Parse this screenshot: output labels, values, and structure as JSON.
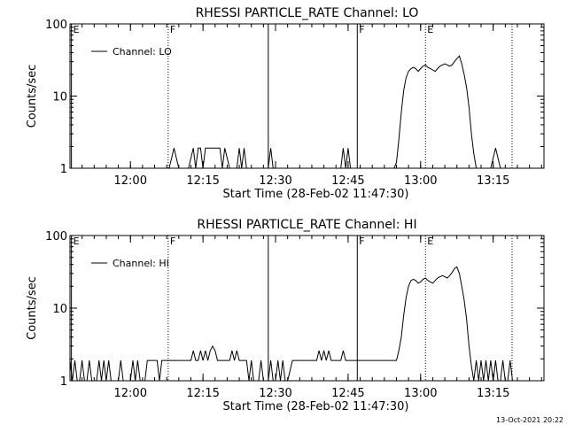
{
  "footer_timestamp": "13-Oct-2021 20:22",
  "chart_data": [
    {
      "type": "line",
      "title": "RHESSI PARTICLE_RATE Channel: LO",
      "xlabel": "Start Time (28-Feb-02 11:47:30)",
      "ylabel": "Counts/sec",
      "yscale": "log",
      "ylim": [
        1,
        100
      ],
      "xlim_minutes": [
        0,
        98
      ],
      "x_tick_labels": [
        "12:00",
        "12:15",
        "12:30",
        "12:45",
        "13:00",
        "13:15"
      ],
      "x_tick_minutes": [
        12.5,
        27.5,
        42.5,
        57.5,
        72.5,
        87.5
      ],
      "y_tick_labels": [
        "1",
        "10",
        "100"
      ],
      "y_ticks": [
        1,
        10,
        100
      ],
      "legend": "Channel: LO",
      "legend_position": "top-left",
      "markers": [
        {
          "label": "E",
          "x": 0.3,
          "style": "solid"
        },
        {
          "label": "F",
          "x": 20.3,
          "style": "dotted"
        },
        {
          "label": "",
          "x": 41.0,
          "style": "solid"
        },
        {
          "label": "F",
          "x": 59.4,
          "style": "solid"
        },
        {
          "label": "E",
          "x": 73.5,
          "style": "dotted"
        },
        {
          "label": "",
          "x": 91.4,
          "style": "dotted"
        }
      ],
      "series": [
        {
          "x": [
            0,
            0.5,
            1.5,
            2.5,
            3.5,
            4.5,
            5.5,
            6.5,
            7.5,
            8.5,
            9.5,
            10.5,
            11.5,
            12.5,
            13.5,
            14.5,
            15.5,
            16.5,
            17.5,
            18.5,
            19.5,
            20.5,
            21.5,
            22.5,
            23.0,
            23.5,
            24.5,
            25.5,
            26.0,
            26.5,
            27.0,
            27.5,
            28.0,
            28.5,
            29.0,
            30.0,
            31.0,
            31.5,
            32.0,
            33.0,
            34.0,
            34.5,
            35.0,
            35.5,
            36.0,
            36.5,
            37.0,
            38.0,
            39.0,
            40.0,
            41.0,
            41.5,
            42.0,
            42.5,
            43.0,
            44.0,
            45.0,
            46.0,
            47.0,
            48.0,
            49.0,
            50.0,
            51.0,
            52.0,
            53.0,
            54.0,
            55.0,
            56.0,
            56.5,
            57.0,
            57.5,
            58.0,
            58.5,
            59.0,
            60.0,
            61.0,
            62.0,
            63.0,
            64.0,
            65.0,
            66.0,
            67.0,
            67.5,
            68.0,
            68.5,
            69.0,
            69.5,
            70.0,
            70.5,
            71.0,
            71.5,
            72.0,
            72.5,
            73.0,
            73.5,
            74.0,
            74.5,
            75.0,
            75.5,
            76.0,
            76.5,
            77.0,
            77.5,
            78.0,
            78.5,
            79.0,
            79.5,
            80.0,
            80.5,
            81.0,
            81.5,
            82.0,
            82.5,
            83.0,
            83.5,
            84.0,
            84.5,
            85.0,
            86.0,
            87.0,
            88.0,
            89.0,
            90.0,
            91.0,
            92.0,
            93.0,
            94.0,
            95.0,
            96.0,
            97.0,
            98.0
          ],
          "y": [
            1,
            1,
            1,
            1,
            1,
            1,
            1,
            1,
            1,
            1,
            1,
            1,
            1,
            1,
            1,
            1,
            1,
            1,
            1,
            1,
            1,
            1,
            1.9,
            1,
            1,
            1,
            1,
            1.9,
            1,
            1.9,
            1.9,
            1,
            1.9,
            1.9,
            1.9,
            1.9,
            1.9,
            1,
            1.9,
            1,
            1,
            1,
            1.9,
            1,
            1.9,
            1,
            1,
            1,
            1,
            1,
            1,
            1.9,
            1,
            1,
            1,
            1,
            1,
            1,
            1,
            1,
            1,
            1,
            1,
            1,
            1,
            1,
            1,
            1,
            1.9,
            1,
            1.9,
            1,
            1,
            1,
            1,
            1,
            1,
            1,
            1,
            1,
            1,
            1,
            1.2,
            2.5,
            6,
            12,
            18,
            22,
            24,
            25,
            24,
            22,
            24,
            26,
            27,
            25,
            24,
            23,
            22,
            24,
            26,
            27,
            28,
            27,
            26,
            27,
            30,
            33,
            36,
            28,
            20,
            13,
            7,
            3,
            1.6,
            1,
            1,
            1,
            1,
            1,
            1.9,
            1,
            1,
            1,
            1,
            1,
            1,
            1,
            1,
            1,
            1
          ]
        }
      ]
    },
    {
      "type": "line",
      "title": "RHESSI PARTICLE_RATE Channel: HI",
      "xlabel": "Start Time (28-Feb-02 11:47:30)",
      "ylabel": "Counts/sec",
      "yscale": "log",
      "ylim": [
        1,
        100
      ],
      "xlim_minutes": [
        0,
        98
      ],
      "x_tick_labels": [
        "12:00",
        "12:15",
        "12:30",
        "12:45",
        "13:00",
        "13:15"
      ],
      "x_tick_minutes": [
        12.5,
        27.5,
        42.5,
        57.5,
        72.5,
        87.5
      ],
      "y_tick_labels": [
        "1",
        "10",
        "100"
      ],
      "y_ticks": [
        1,
        10,
        100
      ],
      "legend": "Channel: HI",
      "legend_position": "top-left",
      "markers": [
        {
          "label": "E",
          "x": 0.3,
          "style": "solid"
        },
        {
          "label": "F",
          "x": 20.3,
          "style": "dotted"
        },
        {
          "label": "",
          "x": 41.0,
          "style": "solid"
        },
        {
          "label": "F",
          "x": 59.4,
          "style": "solid"
        },
        {
          "label": "E",
          "x": 73.5,
          "style": "dotted"
        },
        {
          "label": "",
          "x": 91.4,
          "style": "dotted"
        }
      ],
      "series": [
        {
          "x": [
            0,
            0.5,
            1.0,
            1.5,
            2.0,
            2.5,
            3.0,
            3.5,
            4.0,
            4.5,
            5.0,
            5.5,
            6.0,
            6.5,
            7.0,
            7.5,
            8.0,
            8.5,
            9.0,
            9.5,
            10.0,
            10.5,
            11.0,
            11.5,
            12.0,
            12.5,
            13.0,
            13.5,
            14.0,
            14.5,
            15.0,
            15.5,
            16.0,
            16.5,
            17.0,
            17.5,
            18.0,
            18.5,
            19.0,
            19.5,
            20.0,
            20.5,
            21.0,
            22.0,
            23.0,
            24.0,
            25.0,
            25.5,
            26.0,
            26.5,
            27.0,
            27.5,
            28.0,
            28.5,
            29.0,
            29.5,
            30.0,
            30.5,
            31.0,
            32.0,
            33.0,
            33.5,
            34.0,
            34.5,
            35.0,
            35.5,
            36.0,
            36.5,
            37.0,
            37.5,
            38.0,
            38.5,
            39.0,
            39.5,
            40.0,
            40.5,
            41.0,
            41.5,
            42.0,
            42.5,
            43.0,
            43.5,
            44.0,
            44.5,
            45.0,
            46.0,
            47.0,
            48.0,
            49.0,
            50.0,
            50.5,
            51.0,
            51.5,
            52.0,
            52.5,
            53.0,
            53.5,
            54.0,
            55.0,
            56.0,
            56.5,
            57.0,
            57.5,
            58.0,
            59.0,
            60.0,
            61.0,
            62.0,
            63.0,
            64.0,
            65.0,
            66.0,
            67.0,
            67.5,
            68.0,
            68.5,
            69.0,
            69.5,
            70.0,
            70.5,
            71.0,
            71.5,
            72.0,
            72.5,
            73.0,
            73.5,
            74.0,
            74.5,
            75.0,
            75.5,
            76.0,
            76.5,
            77.0,
            77.5,
            78.0,
            78.5,
            79.0,
            79.5,
            80.0,
            80.5,
            81.0,
            81.5,
            82.0,
            82.5,
            83.0,
            83.5,
            84.0,
            84.5,
            85.0,
            85.5,
            86.0,
            86.5,
            87.0,
            87.5,
            88.0,
            88.5,
            89.0,
            89.5,
            90.0,
            90.5,
            91.0,
            91.5,
            92.0,
            92.5,
            93.0,
            94.0,
            95.0,
            96.0,
            97.0,
            98.0
          ],
          "y": [
            1.9,
            1,
            1.9,
            1,
            1,
            1.9,
            1,
            1,
            1.9,
            1,
            1,
            1,
            1.9,
            1,
            1.9,
            1,
            1.9,
            1,
            1,
            1,
            1,
            1.9,
            1,
            1,
            1,
            1,
            1.9,
            1,
            1.9,
            1,
            1,
            1,
            1.9,
            1.9,
            1.9,
            1.9,
            1.9,
            1,
            1.9,
            1.9,
            1.9,
            1.9,
            1.9,
            1.9,
            1.9,
            1.9,
            1.9,
            2.6,
            1.9,
            1.9,
            2.6,
            1.9,
            2.6,
            1.9,
            2.6,
            3.0,
            2.6,
            1.9,
            1.9,
            1.9,
            1.9,
            2.6,
            1.9,
            2.6,
            1.9,
            1.9,
            1.9,
            1.9,
            1,
            1.9,
            1,
            1,
            1,
            1.9,
            1,
            1,
            1,
            1.9,
            1,
            1,
            1.9,
            1,
            1.9,
            1,
            1,
            1.9,
            1.9,
            1.9,
            1.9,
            1.9,
            1.9,
            1.9,
            2.6,
            1.9,
            2.6,
            1.9,
            2.6,
            1.9,
            1.9,
            1.9,
            2.6,
            1.9,
            1.9,
            1.9,
            1.9,
            1.9,
            1.9,
            1.9,
            1.9,
            1.9,
            1.9,
            1.9,
            1.9,
            1.9,
            2.6,
            4,
            8,
            14,
            20,
            24,
            25,
            24,
            22,
            23,
            25,
            26,
            24,
            23,
            22,
            24,
            26,
            27,
            28,
            27,
            26,
            28,
            31,
            35,
            37,
            30,
            20,
            13,
            7,
            3,
            1.6,
            1,
            1.9,
            1,
            1.9,
            1,
            1.9,
            1,
            1.9,
            1,
            1.9,
            1,
            1,
            1.9,
            1,
            1,
            1.9,
            1,
            1,
            1,
            1,
            1,
            1,
            1,
            1,
            1
          ]
        }
      ]
    }
  ]
}
